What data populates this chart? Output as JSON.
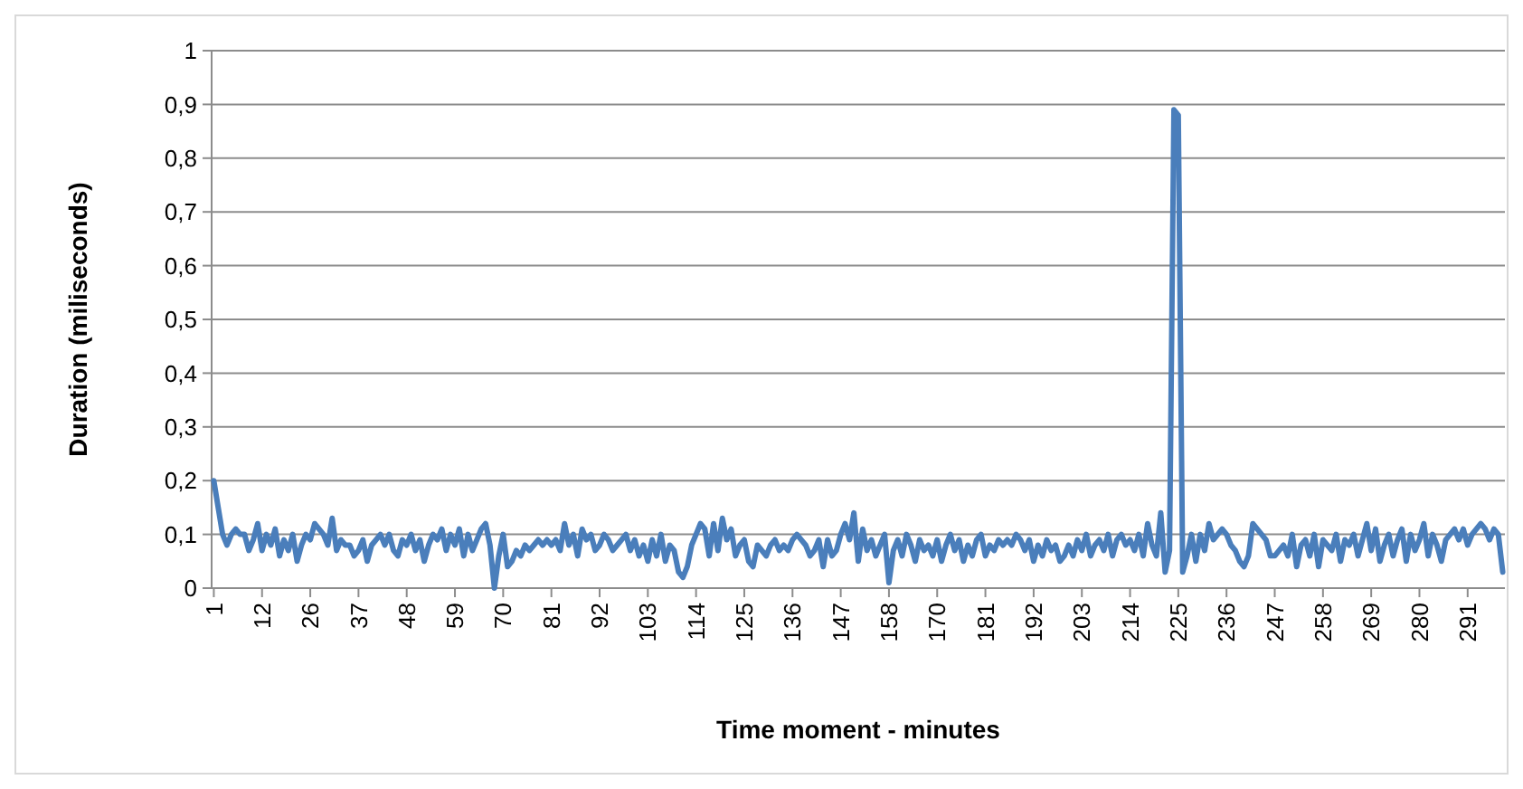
{
  "chart_data": {
    "type": "line",
    "xlabel": "Time moment - minutes",
    "ylabel": "Duration (miliseconds)",
    "categories": [
      "1",
      null,
      null,
      null,
      null,
      null,
      null,
      null,
      null,
      null,
      null,
      "12",
      null,
      null,
      null,
      null,
      null,
      null,
      null,
      null,
      null,
      null,
      "26",
      null,
      null,
      null,
      null,
      null,
      null,
      null,
      null,
      null,
      null,
      "37",
      null,
      null,
      null,
      null,
      null,
      null,
      null,
      null,
      null,
      null,
      "48",
      null,
      null,
      null,
      null,
      null,
      null,
      null,
      null,
      null,
      null,
      "59",
      null,
      null,
      null,
      null,
      null,
      null,
      null,
      null,
      null,
      null,
      "70",
      null,
      null,
      null,
      null,
      null,
      null,
      null,
      null,
      null,
      null,
      "81",
      null,
      null,
      null,
      null,
      null,
      null,
      null,
      null,
      null,
      null,
      "92",
      null,
      null,
      null,
      null,
      null,
      null,
      null,
      null,
      null,
      null,
      "103",
      null,
      null,
      null,
      null,
      null,
      null,
      null,
      null,
      null,
      null,
      "114",
      null,
      null,
      null,
      null,
      null,
      null,
      null,
      null,
      null,
      null,
      "125",
      null,
      null,
      null,
      null,
      null,
      null,
      null,
      null,
      null,
      null,
      "136",
      null,
      null,
      null,
      null,
      null,
      null,
      null,
      null,
      null,
      null,
      "147",
      null,
      null,
      null,
      null,
      null,
      null,
      null,
      null,
      null,
      null,
      "158",
      null,
      null,
      null,
      null,
      null,
      null,
      null,
      null,
      null,
      null,
      "170",
      null,
      null,
      null,
      null,
      null,
      null,
      null,
      null,
      null,
      null,
      "181",
      null,
      null,
      null,
      null,
      null,
      null,
      null,
      null,
      null,
      null,
      "192",
      null,
      null,
      null,
      null,
      null,
      null,
      null,
      null,
      null,
      null,
      "203",
      null,
      null,
      null,
      null,
      null,
      null,
      null,
      null,
      null,
      null,
      "214",
      null,
      null,
      null,
      null,
      null,
      null,
      null,
      null,
      null,
      null,
      "225",
      null,
      null,
      null,
      null,
      null,
      null,
      null,
      null,
      null,
      null,
      "236",
      null,
      null,
      null,
      null,
      null,
      null,
      null,
      null,
      null,
      null,
      "247",
      null,
      null,
      null,
      null,
      null,
      null,
      null,
      null,
      null,
      null,
      "258",
      null,
      null,
      null,
      null,
      null,
      null,
      null,
      null,
      null,
      null,
      "269",
      null,
      null,
      null,
      null,
      null,
      null,
      null,
      null,
      null,
      null,
      "280",
      null,
      null,
      null,
      null,
      null,
      null,
      null,
      null,
      null,
      null,
      "291",
      null,
      null,
      null,
      null,
      null,
      null,
      null,
      null
    ],
    "series": [
      {
        "color": "#4a7ebb",
        "values": [
          0.2,
          0.15,
          0.1,
          0.08,
          0.1,
          0.11,
          0.1,
          0.1,
          0.07,
          0.09,
          0.12,
          0.07,
          0.1,
          0.08,
          0.11,
          0.06,
          0.09,
          0.07,
          0.1,
          0.05,
          0.08,
          0.1,
          0.09,
          0.12,
          0.11,
          0.1,
          0.08,
          0.13,
          0.07,
          0.09,
          0.08,
          0.08,
          0.06,
          0.07,
          0.09,
          0.05,
          0.08,
          0.09,
          0.1,
          0.08,
          0.1,
          0.07,
          0.06,
          0.09,
          0.08,
          0.1,
          0.07,
          0.09,
          0.05,
          0.08,
          0.1,
          0.09,
          0.11,
          0.07,
          0.1,
          0.08,
          0.11,
          0.06,
          0.1,
          0.07,
          0.09,
          0.11,
          0.12,
          0.08,
          0.0,
          0.06,
          0.1,
          0.04,
          0.05,
          0.07,
          0.06,
          0.08,
          0.07,
          0.08,
          0.09,
          0.08,
          0.09,
          0.08,
          0.09,
          0.07,
          0.12,
          0.08,
          0.1,
          0.06,
          0.11,
          0.09,
          0.1,
          0.07,
          0.08,
          0.1,
          0.09,
          0.07,
          0.08,
          0.09,
          0.1,
          0.07,
          0.09,
          0.06,
          0.08,
          0.05,
          0.09,
          0.06,
          0.1,
          0.05,
          0.08,
          0.07,
          0.03,
          0.02,
          0.04,
          0.08,
          0.1,
          0.12,
          0.11,
          0.06,
          0.12,
          0.07,
          0.13,
          0.09,
          0.11,
          0.06,
          0.08,
          0.09,
          0.05,
          0.04,
          0.08,
          0.07,
          0.06,
          0.08,
          0.09,
          0.07,
          0.08,
          0.07,
          0.09,
          0.1,
          0.09,
          0.08,
          0.06,
          0.07,
          0.09,
          0.04,
          0.09,
          0.06,
          0.07,
          0.1,
          0.12,
          0.09,
          0.14,
          0.05,
          0.11,
          0.07,
          0.09,
          0.06,
          0.08,
          0.1,
          0.01,
          0.07,
          0.09,
          0.06,
          0.1,
          0.08,
          0.05,
          0.09,
          0.07,
          0.08,
          0.06,
          0.09,
          0.05,
          0.08,
          0.1,
          0.07,
          0.09,
          0.05,
          0.08,
          0.06,
          0.09,
          0.1,
          0.06,
          0.08,
          0.07,
          0.09,
          0.08,
          0.09,
          0.08,
          0.1,
          0.09,
          0.07,
          0.09,
          0.05,
          0.08,
          0.06,
          0.09,
          0.07,
          0.08,
          0.05,
          0.06,
          0.08,
          0.06,
          0.09,
          0.07,
          0.1,
          0.06,
          0.08,
          0.09,
          0.07,
          0.1,
          0.06,
          0.09,
          0.1,
          0.08,
          0.09,
          0.07,
          0.1,
          0.06,
          0.12,
          0.08,
          0.06,
          0.14,
          0.03,
          0.07,
          0.89,
          0.88,
          0.03,
          0.06,
          0.1,
          0.05,
          0.1,
          0.07,
          0.12,
          0.09,
          0.1,
          0.11,
          0.1,
          0.08,
          0.07,
          0.05,
          0.04,
          0.06,
          0.12,
          0.11,
          0.1,
          0.09,
          0.06,
          0.06,
          0.07,
          0.08,
          0.06,
          0.1,
          0.04,
          0.08,
          0.09,
          0.06,
          0.1,
          0.04,
          0.09,
          0.08,
          0.07,
          0.1,
          0.05,
          0.09,
          0.08,
          0.1,
          0.06,
          0.09,
          0.12,
          0.07,
          0.11,
          0.05,
          0.08,
          0.1,
          0.06,
          0.09,
          0.11,
          0.05,
          0.1,
          0.07,
          0.09,
          0.12,
          0.06,
          0.1,
          0.08,
          0.05,
          0.09,
          0.1,
          0.11,
          0.09,
          0.11,
          0.08,
          0.1,
          0.11,
          0.12,
          0.11,
          0.09,
          0.11,
          0.1,
          0.03
        ]
      }
    ],
    "ylim": [
      0,
      1
    ],
    "yticks": [
      0,
      {
        "value": 0.1,
        "label": "0,1"
      },
      {
        "value": 0.2,
        "label": "0,2"
      },
      {
        "value": 0.3,
        "label": "0,3"
      },
      {
        "value": 0.4,
        "label": "0,4"
      },
      {
        "value": 0.5,
        "label": "0,5"
      },
      {
        "value": 0.6,
        "label": "0,6"
      },
      {
        "value": 0.7,
        "label": "0,7"
      },
      {
        "value": 0.8,
        "label": "0,8"
      },
      {
        "value": 0.9,
        "label": "0,9"
      },
      1
    ],
    "grid": "y",
    "marker": "none",
    "line_style": "solid"
  }
}
